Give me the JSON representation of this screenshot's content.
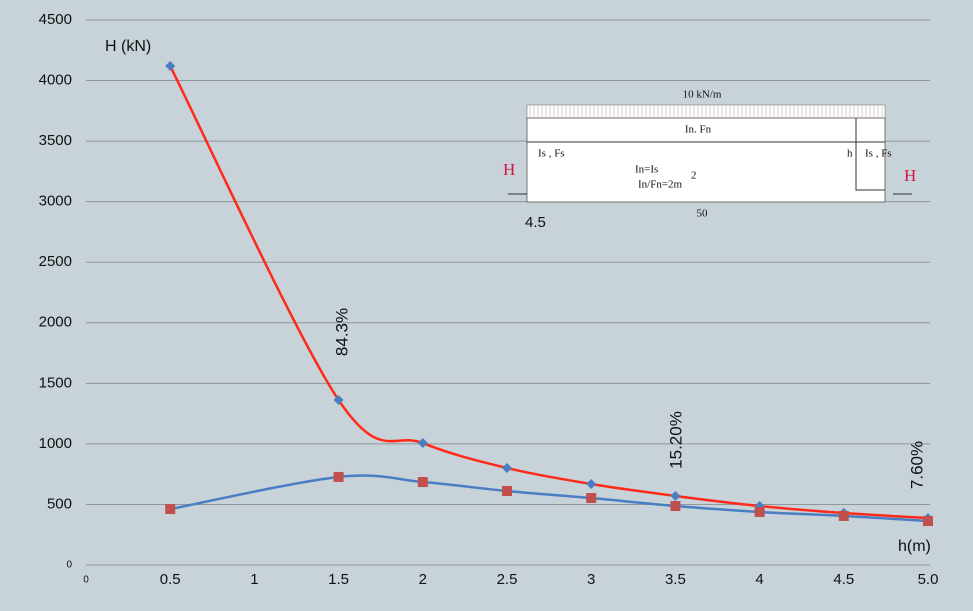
{
  "chart_data": {
    "type": "line",
    "y_label": "H (kN)",
    "x_label": "h(m)",
    "x": [
      0.5,
      1.5,
      2,
      2.5,
      3,
      3.5,
      4,
      4.5,
      5
    ],
    "series": [
      {
        "color": "#ff2a1a",
        "marker": "diamond",
        "marker_color": "#4a7ec4",
        "values": [
          4120,
          1362,
          1007,
          801,
          669,
          570,
          487,
          429,
          388
        ]
      },
      {
        "color": "#4a7ec4",
        "marker": "square",
        "marker_color": "#c0504d",
        "values": [
          462,
          727,
          685,
          611,
          553,
          487,
          438,
          405,
          363
        ]
      }
    ],
    "xlim": [
      0,
      5
    ],
    "ylim": [
      0,
      4500
    ],
    "xticks": [
      0,
      0.5,
      1,
      1.5,
      2,
      2.5,
      3,
      3.5,
      4,
      4.5,
      {
        "value": 5,
        "label": "5.0"
      }
    ],
    "yticks": [
      0,
      500,
      1000,
      1500,
      2000,
      2500,
      3000,
      3500,
      4000,
      4500
    ],
    "grid": true,
    "annotations": [
      "84.3%",
      "15.20%",
      "7.60%"
    ],
    "inset": {
      "load": "10 kN/m",
      "beam": "In. Fn",
      "col_left": "Is , Fs",
      "col_right": "Is , Fs",
      "h": "h",
      "eq1": "In=Is",
      "eq2": "In/Fn=2m",
      "exp": "2",
      "force_left": "H",
      "force_right": "H",
      "dim_left": "4.5",
      "span": "50"
    }
  }
}
